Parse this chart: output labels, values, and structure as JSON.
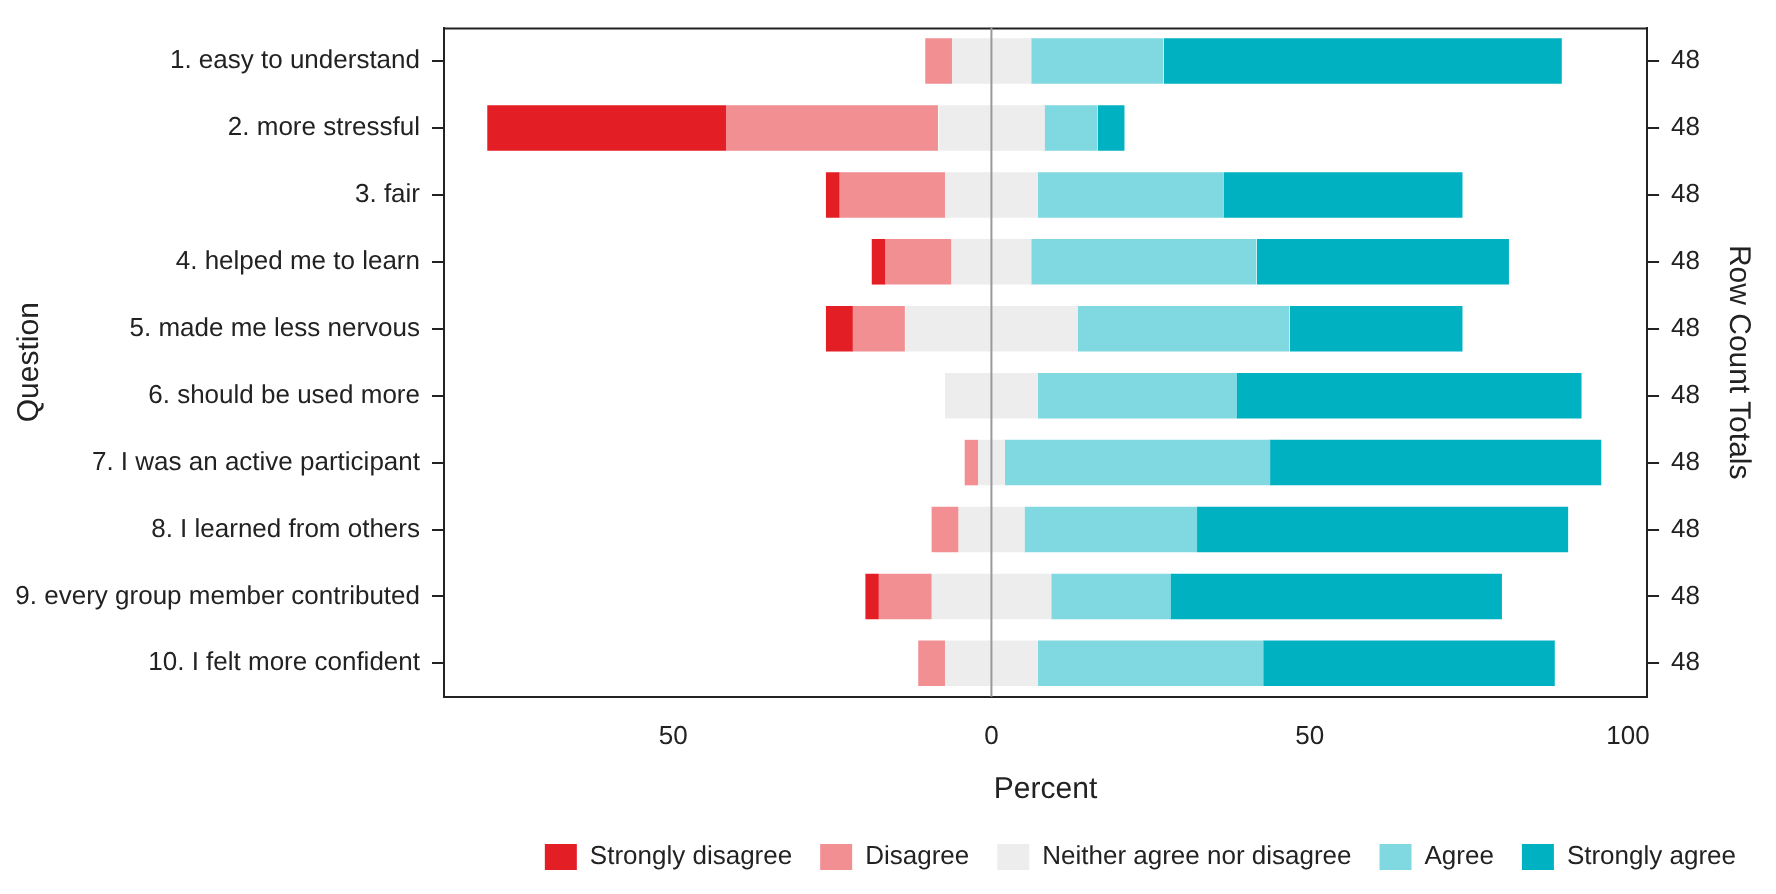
{
  "chart_data": {
    "type": "bar",
    "orientation": "horizontal",
    "xlabel": "Percent",
    "ylabel": "Question",
    "y2label": "Row Count Totals",
    "categories": [
      "1. easy to understand",
      "2. more stressful",
      "3. fair",
      "4. helped me to learn",
      "5. made me less nervous",
      "6. should be used more",
      "7. I was an active participant",
      "8. I learned from others",
      "9. every group member contributed",
      "10. I felt more confident"
    ],
    "y2_categories": [
      "48",
      "48",
      "48",
      "48",
      "48",
      "48",
      "48",
      "48",
      "48",
      "48"
    ],
    "xlim": [
      -86,
      103
    ],
    "xticks": [
      {
        "value": -50,
        "label": "50"
      },
      0,
      50,
      100
    ],
    "grid": false,
    "legend": "bottom right",
    "ref_lines": [
      {
        "axis": "x",
        "value": 0,
        "color": "#999999"
      }
    ],
    "series": [
      {
        "name": "Strongly disagree",
        "color": "#e31e24",
        "base": [
          null,
          -79.2,
          -26.0,
          -18.8,
          -26.0,
          null,
          null,
          null,
          -19.8,
          null
        ],
        "values": [
          null,
          37.5,
          2.1,
          2.1,
          4.2,
          null,
          null,
          null,
          2.1,
          null
        ]
      },
      {
        "name": "Disagree",
        "color": "#f18f93",
        "base": [
          -10.4,
          -41.7,
          -24.0,
          -16.7,
          -21.9,
          null,
          -4.2,
          -9.4,
          -17.7,
          -11.5
        ],
        "values": [
          4.2,
          33.3,
          16.7,
          10.4,
          8.3,
          null,
          2.1,
          4.2,
          8.3,
          4.2
        ]
      },
      {
        "name": "Neither agree nor disagree",
        "color": "#ededed",
        "base": [
          -6.2,
          -8.3,
          -7.3,
          -6.2,
          -13.5,
          -7.3,
          -2.1,
          -5.2,
          -9.4,
          -7.3
        ],
        "values": [
          12.5,
          16.7,
          14.6,
          12.5,
          27.1,
          14.6,
          4.2,
          10.4,
          18.8,
          14.6
        ]
      },
      {
        "name": "Agree",
        "color": "#80d8e0",
        "base": [
          6.2,
          8.3,
          7.3,
          6.2,
          13.5,
          7.3,
          2.1,
          5.2,
          9.4,
          7.3
        ],
        "values": [
          20.8,
          8.3,
          29.2,
          35.4,
          33.3,
          31.2,
          41.7,
          27.1,
          18.8,
          35.4
        ]
      },
      {
        "name": "Strongly agree",
        "color": "#00b1c1",
        "base": [
          27.1,
          16.7,
          36.5,
          41.7,
          46.9,
          38.5,
          43.7,
          32.3,
          28.1,
          42.7
        ],
        "values": [
          62.5,
          4.2,
          37.5,
          39.6,
          27.1,
          54.2,
          52.1,
          58.3,
          52.1,
          45.8
        ]
      }
    ]
  }
}
